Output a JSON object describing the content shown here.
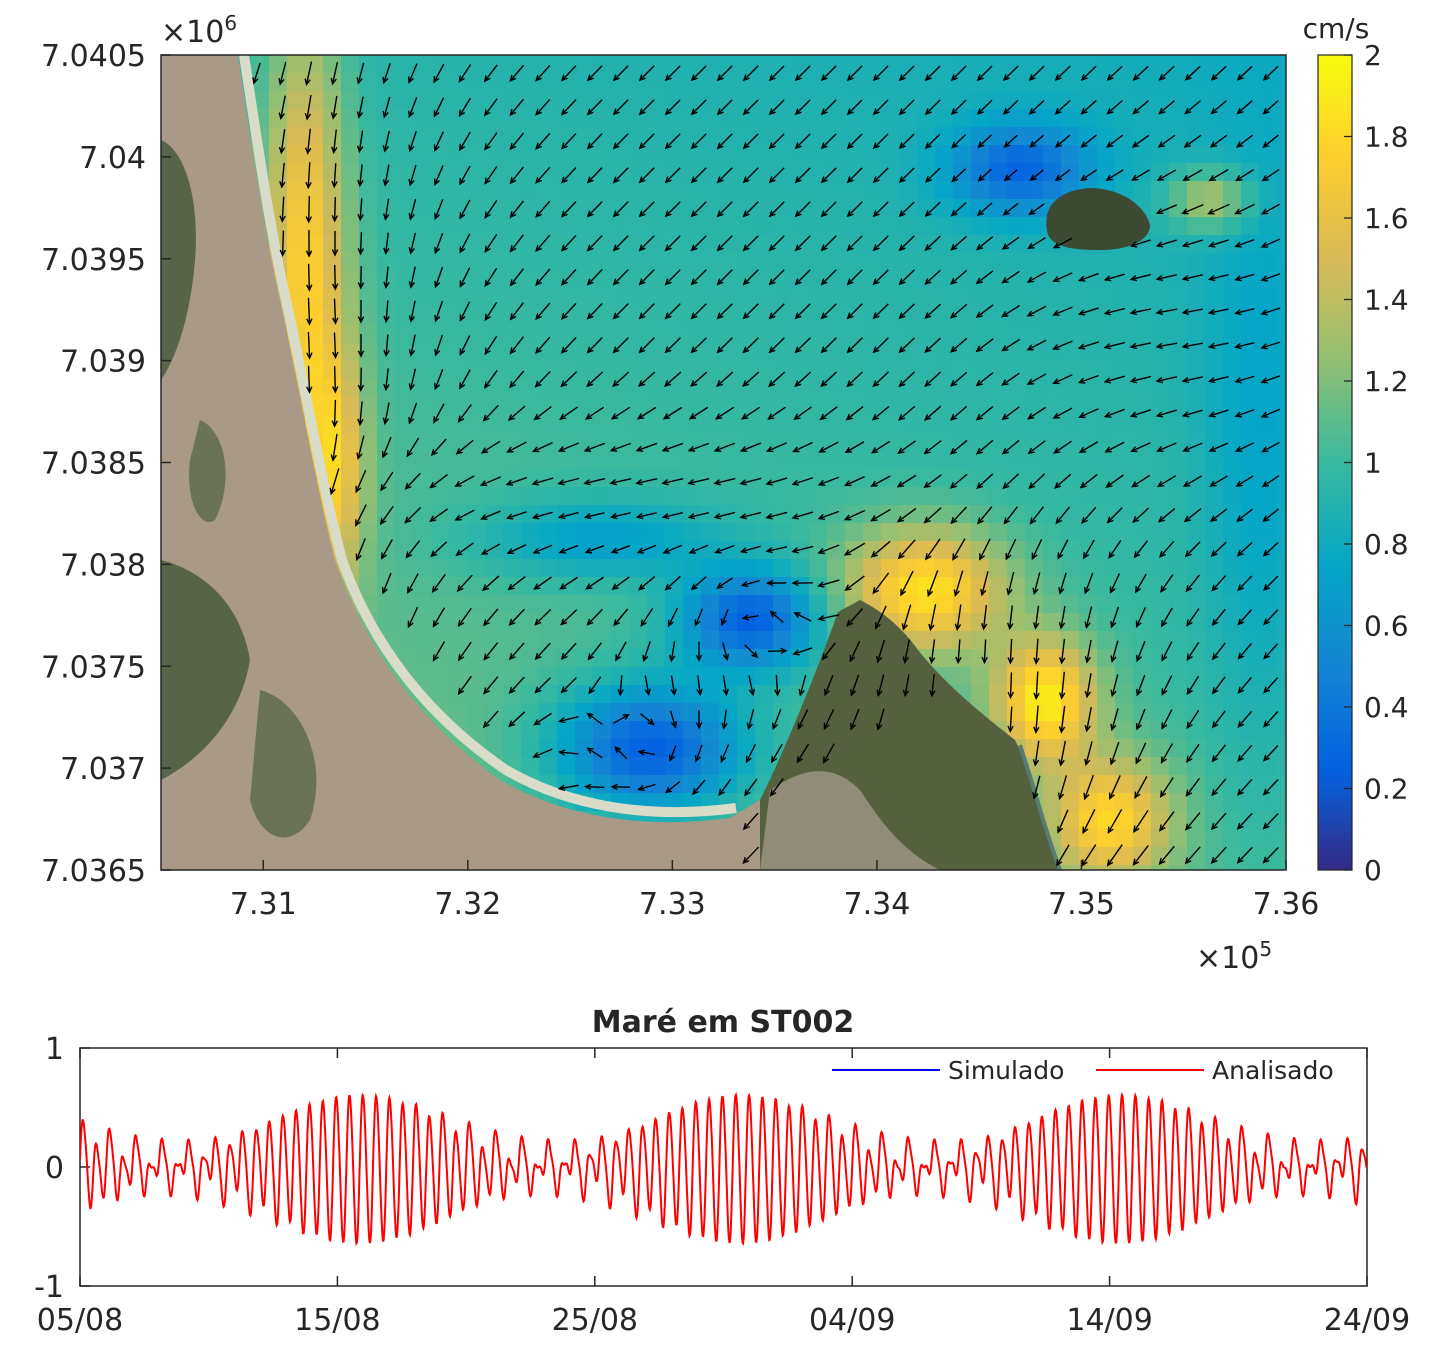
{
  "chart_data": [
    {
      "type": "heatmap",
      "subtype": "current-velocity-field-with-quiver",
      "title": "",
      "x_tick_labels": [
        "7.31",
        "7.32",
        "7.33",
        "7.34",
        "7.35",
        "7.36"
      ],
      "x_ticks": [
        731000,
        732000,
        733000,
        734000,
        735000,
        736000
      ],
      "x_exponent_label": "×10",
      "x_exponent": "5",
      "xlim": [
        730500,
        736000
      ],
      "y_tick_labels": [
        "7.0405",
        "7.04",
        "7.0395",
        "7.039",
        "7.0385",
        "7.038",
        "7.0375",
        "7.037",
        "7.0365"
      ],
      "y_ticks": [
        7040500,
        7040000,
        7039500,
        7039000,
        7038500,
        7038000,
        7037500,
        7037000,
        7036500
      ],
      "y_exponent_label": "×10",
      "y_exponent": "6",
      "ylim": [
        7036500,
        7040500
      ],
      "colorbar": {
        "label": "cm/s",
        "tick_labels": [
          "2",
          "1.8",
          "1.6",
          "1.4",
          "1.2",
          "1",
          "0.8",
          "0.6",
          "0.4",
          "0.2",
          "0"
        ],
        "ticks": [
          2,
          1.8,
          1.6,
          1.4,
          1.2,
          1,
          0.8,
          0.6,
          0.4,
          0.2,
          0
        ],
        "range": [
          0,
          2
        ],
        "colormap": "parula",
        "stops": [
          "#352a87",
          "#0363e1",
          "#1485d4",
          "#06a7c6",
          "#38b99e",
          "#92bf73",
          "#d9ba56",
          "#fcce2e",
          "#f9fb0e"
        ]
      },
      "features": {
        "high_speed_channel": "western margin and eastern channel, ~1.6-2 cm/s",
        "low_speed_eddies": "two eddies near 7.329e5/7.0371e6 and 7.334e5/7.0377e6, ~0.1-0.3 cm/s",
        "background": "~0.8-1.2 cm/s over the bay"
      },
      "colors": {
        "arrows": "#000000",
        "land_dark": "#3d4a33",
        "land_urban": "#a89a86",
        "beach": "#d8dcc8"
      }
    },
    {
      "type": "line",
      "title": "Maré em ST002",
      "x_tick_labels": [
        "05/08",
        "15/08",
        "25/08",
        "04/09",
        "14/09",
        "24/09"
      ],
      "x_start_day": 0,
      "x_end_day": 50,
      "x_tick_days": [
        0,
        10,
        20,
        30,
        40,
        50
      ],
      "y_tick_labels": [
        "1",
        "0",
        "-1"
      ],
      "y_ticks": [
        1,
        0,
        -1
      ],
      "ylim": [
        -1,
        1
      ],
      "legend": [
        "Simulado",
        "Analisado"
      ],
      "legend_position": "top-right",
      "series": [
        {
          "name": "Simulado",
          "color": "#0000ff",
          "values": []
        },
        {
          "name": "Analisado",
          "color": "#ff0000",
          "note": "semi-diurnal tide, spring/neap modulation",
          "spring_peak_days": [
            11,
            26,
            40
          ],
          "neap_days": [
            3,
            18,
            32,
            48
          ],
          "amplitude_range": [
            0.12,
            0.62
          ],
          "period_days": 0.5175,
          "mean": 0.0
        }
      ]
    }
  ]
}
